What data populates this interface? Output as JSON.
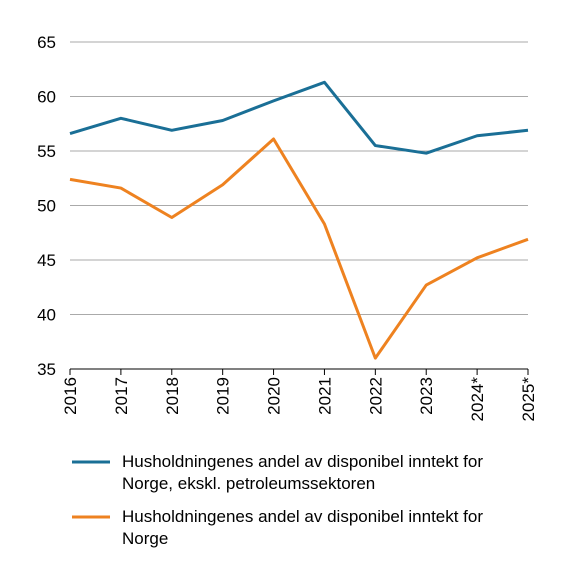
{
  "chart_data": {
    "type": "line",
    "categories": [
      "2016",
      "2017",
      "2018",
      "2019",
      "2020",
      "2021",
      "2022",
      "2023",
      "2024*",
      "2025*"
    ],
    "series": [
      {
        "name": "Husholdningenes andel av disponibel inntekt for Norge, ekskl. petroleumssektoren",
        "color": "#1a6f96",
        "values": [
          56.6,
          58.0,
          56.9,
          57.8,
          59.6,
          61.3,
          55.5,
          54.8,
          56.4,
          56.9
        ]
      },
      {
        "name": "Husholdningenes andel av disponibel inntekt for Norge",
        "color": "#ee8220",
        "values": [
          52.4,
          51.6,
          48.9,
          51.9,
          56.1,
          48.3,
          36.0,
          42.7,
          45.2,
          46.9
        ]
      }
    ],
    "ylim": [
      35,
      65
    ],
    "yticks": [
      35,
      40,
      45,
      50,
      55,
      60,
      65
    ],
    "grid": true
  }
}
